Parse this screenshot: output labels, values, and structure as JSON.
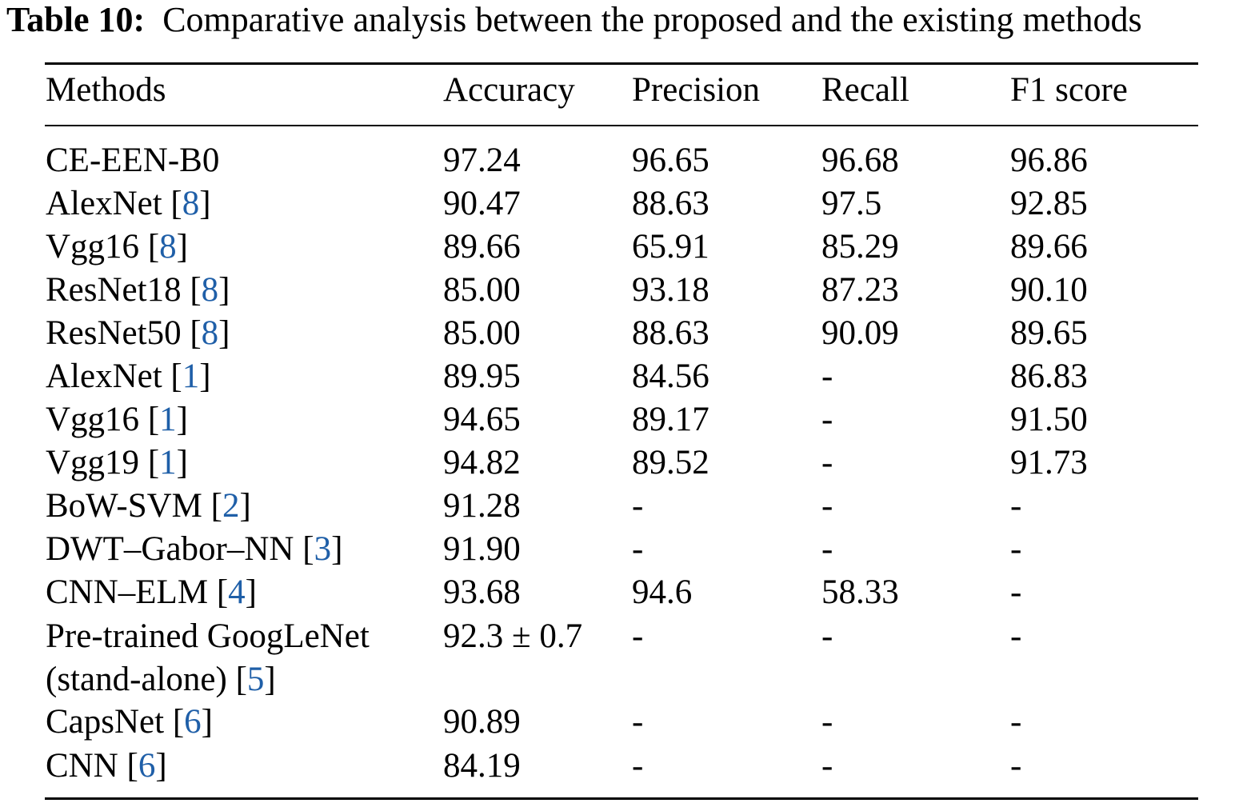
{
  "caption": {
    "label": "Table 10:",
    "text": "Comparative analysis between the proposed and the existing methods"
  },
  "table": {
    "headers": [
      "Methods",
      "Accuracy",
      "Precision",
      "Recall",
      "F1 score"
    ],
    "rows": [
      {
        "method": "CE-EEN-B0",
        "ref": "",
        "accuracy": "97.24",
        "precision": "96.65",
        "recall": "96.68",
        "f1": "96.86"
      },
      {
        "method": "AlexNet",
        "ref": "8",
        "accuracy": "90.47",
        "precision": "88.63",
        "recall": "97.5",
        "f1": "92.85"
      },
      {
        "method": "Vgg16",
        "ref": "8",
        "accuracy": "89.66",
        "precision": "65.91",
        "recall": "85.29",
        "f1": "89.66"
      },
      {
        "method": "ResNet18",
        "ref": "8",
        "accuracy": "85.00",
        "precision": "93.18",
        "recall": "87.23",
        "f1": "90.10"
      },
      {
        "method": "ResNet50",
        "ref": "8",
        "accuracy": "85.00",
        "precision": "88.63",
        "recall": "90.09",
        "f1": "89.65"
      },
      {
        "method": "AlexNet",
        "ref": "1",
        "accuracy": "89.95",
        "precision": "84.56",
        "recall": "-",
        "f1": "86.83"
      },
      {
        "method": "Vgg16",
        "ref": "1",
        "accuracy": "94.65",
        "precision": "89.17",
        "recall": "-",
        "f1": "91.50"
      },
      {
        "method": "Vgg19",
        "ref": "1",
        "accuracy": "94.82",
        "precision": "89.52",
        "recall": "-",
        "f1": "91.73"
      },
      {
        "method": "BoW-SVM",
        "ref": "2",
        "accuracy": "91.28",
        "precision": "-",
        "recall": "-",
        "f1": "-"
      },
      {
        "method": "DWT–Gabor–NN",
        "ref": "3",
        "accuracy": "91.90",
        "precision": "-",
        "recall": "-",
        "f1": "-"
      },
      {
        "method": "CNN–ELM",
        "ref": "4",
        "accuracy": "93.68",
        "precision": "94.6",
        "recall": "58.33",
        "f1": "-"
      },
      {
        "method": "Pre-trained GoogLeNet",
        "method_line2": "(stand-alone)",
        "ref": "5",
        "accuracy": "92.3 ± 0.7",
        "precision": "-",
        "recall": "-",
        "f1": "-"
      },
      {
        "method": "CapsNet",
        "ref": "6",
        "accuracy": "90.89",
        "precision": "-",
        "recall": "-",
        "f1": "-"
      },
      {
        "method": "CNN",
        "ref": "6",
        "accuracy": "84.19",
        "precision": "-",
        "recall": "-",
        "f1": "-"
      }
    ]
  }
}
